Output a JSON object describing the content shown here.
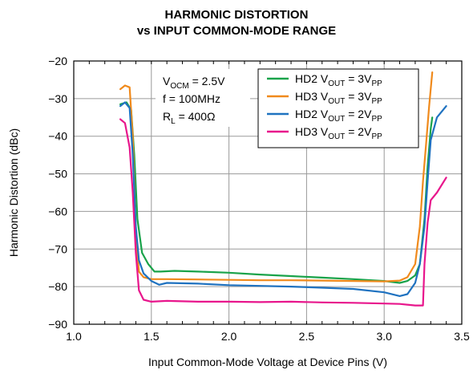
{
  "chart_data": {
    "type": "line",
    "title": "HARMONIC DISTORTION",
    "subtitle": "vs INPUT COMMON-MODE RANGE",
    "xlabel": "Input Common-Mode Voltage at Device Pins (V)",
    "ylabel": "Harmonic Distortion (dBc)",
    "xlim": [
      1.0,
      3.5
    ],
    "ylim": [
      -90,
      -20
    ],
    "xticks": [
      "1.0",
      "1.5",
      "2.0",
      "2.5",
      "3.0",
      "3.5"
    ],
    "yticks": [
      "−20",
      "−30",
      "−40",
      "−50",
      "−60",
      "−70",
      "−80",
      "−90"
    ],
    "grid": true,
    "conditions": {
      "line1": {
        "main": "V",
        "sub": "OCM",
        "tail": " = 2.5V"
      },
      "line2": {
        "main": "f = 100MHz",
        "sub": "",
        "tail": ""
      },
      "line3": {
        "main": "R",
        "sub": "L",
        "tail": " = 400Ω"
      }
    },
    "legend_position": "top-right",
    "series": [
      {
        "name": "HD2 VOUT = 3VPP",
        "label_main": "HD2 V",
        "label_sub1": "OUT",
        "label_mid": " = 3V",
        "label_sub2": "PP",
        "color": "#1aa34a",
        "x": [
          1.3,
          1.34,
          1.37,
          1.39,
          1.41,
          1.44,
          1.48,
          1.52,
          1.56,
          1.65,
          1.8,
          2.0,
          2.2,
          2.4,
          2.6,
          2.8,
          3.0,
          3.1,
          3.15,
          3.2,
          3.23,
          3.26,
          3.28,
          3.3,
          3.31
        ],
        "y": [
          -31.5,
          -31,
          -33,
          -45,
          -62,
          -71,
          -74,
          -76,
          -76,
          -75.8,
          -76,
          -76.3,
          -76.8,
          -77.2,
          -77.6,
          -78,
          -78.5,
          -79,
          -78.5,
          -77,
          -74,
          -62,
          -48,
          -38,
          -35
        ]
      },
      {
        "name": "HD3 VOUT = 3VPP",
        "label_main": "HD3 V",
        "label_sub1": "OUT",
        "label_mid": " = 3V",
        "label_sub2": "PP",
        "color": "#f08a1c",
        "x": [
          1.3,
          1.33,
          1.36,
          1.38,
          1.4,
          1.42,
          1.45,
          1.5,
          1.6,
          1.8,
          2.0,
          2.2,
          2.4,
          2.6,
          2.8,
          3.0,
          3.1,
          3.15,
          3.2,
          3.23,
          3.25,
          3.27,
          3.29,
          3.31
        ],
        "y": [
          -27.5,
          -26.5,
          -27,
          -40,
          -66,
          -76,
          -77.5,
          -78,
          -78,
          -78.1,
          -78.2,
          -78.3,
          -78.3,
          -78.4,
          -78.5,
          -78.6,
          -78.4,
          -77.5,
          -74,
          -64,
          -52,
          -42,
          -32,
          -23
        ]
      },
      {
        "name": "HD2 VOUT = 2VPP",
        "label_main": "HD2 V",
        "label_sub1": "OUT",
        "label_mid": " = 2V",
        "label_sub2": "PP",
        "color": "#1f72c0",
        "x": [
          1.3,
          1.33,
          1.36,
          1.38,
          1.4,
          1.42,
          1.45,
          1.5,
          1.55,
          1.6,
          1.8,
          2.0,
          2.2,
          2.4,
          2.6,
          2.8,
          3.0,
          3.1,
          3.15,
          3.2,
          3.23,
          3.26,
          3.28,
          3.3,
          3.34,
          3.4
        ],
        "y": [
          -32,
          -31,
          -32.5,
          -45,
          -64,
          -73,
          -76.5,
          -78.5,
          -79.5,
          -79,
          -79.2,
          -79.6,
          -79.8,
          -80,
          -80.3,
          -80.6,
          -81.5,
          -82.5,
          -82,
          -79,
          -74,
          -64,
          -52,
          -41,
          -35,
          -32
        ]
      },
      {
        "name": "HD3 VOUT = 2VPP",
        "label_main": "HD3 V",
        "label_sub1": "OUT",
        "label_mid": " = 2V",
        "label_sub2": "PP",
        "color": "#e8168c",
        "x": [
          1.3,
          1.33,
          1.36,
          1.38,
          1.4,
          1.42,
          1.45,
          1.5,
          1.6,
          1.8,
          2.0,
          2.2,
          2.4,
          2.6,
          2.8,
          3.0,
          3.1,
          3.2,
          3.25,
          3.26,
          3.28,
          3.3,
          3.34,
          3.4
        ],
        "y": [
          -35.5,
          -36.5,
          -43,
          -55,
          -71,
          -81,
          -83.5,
          -84,
          -83.8,
          -84,
          -84,
          -84.1,
          -84,
          -84.2,
          -84.3,
          -84.5,
          -84.6,
          -85,
          -85,
          -74,
          -63,
          -57,
          -55,
          -51
        ]
      }
    ]
  }
}
